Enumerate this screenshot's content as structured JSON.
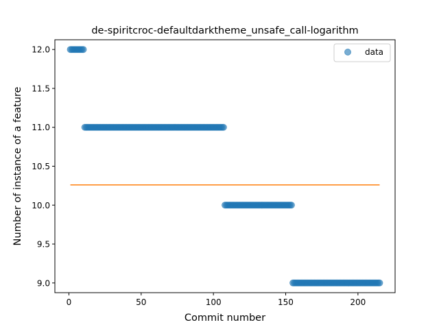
{
  "chart_data": {
    "type": "scatter",
    "title": "de-spiritcroc-defaultdarktheme_unsafe_call-logarithm",
    "xlabel": "Commit number",
    "ylabel": "Number of instance of a feature",
    "xlim": [
      -9.7,
      225.7
    ],
    "ylim": [
      8.875,
      12.125
    ],
    "xticks": [
      0,
      50,
      100,
      150,
      200
    ],
    "yticks": [
      9.0,
      9.5,
      10.0,
      10.5,
      11.0,
      11.5,
      12.0
    ],
    "xtick_labels": [
      "0",
      "50",
      "100",
      "150",
      "200"
    ],
    "ytick_labels": [
      "9.0",
      "9.5",
      "10.0",
      "10.5",
      "11.0",
      "11.5",
      "12.0"
    ],
    "legend": {
      "label": "data",
      "placement": "top-right"
    },
    "grid": false,
    "series": [
      {
        "name": "data",
        "kind": "scatter",
        "color": "#1f77b4",
        "segments": [
          {
            "x_start": 1,
            "x_end": 10,
            "y": 12.0
          },
          {
            "x_start": 11,
            "x_end": 107,
            "y": 11.0
          },
          {
            "x_start": 108,
            "x_end": 154,
            "y": 10.0
          },
          {
            "x_start": 155,
            "x_end": 215,
            "y": 9.0
          }
        ]
      },
      {
        "kind": "line",
        "color": "#ff7f0e",
        "x": [
          1,
          215
        ],
        "y": [
          10.26,
          10.26
        ]
      }
    ]
  }
}
